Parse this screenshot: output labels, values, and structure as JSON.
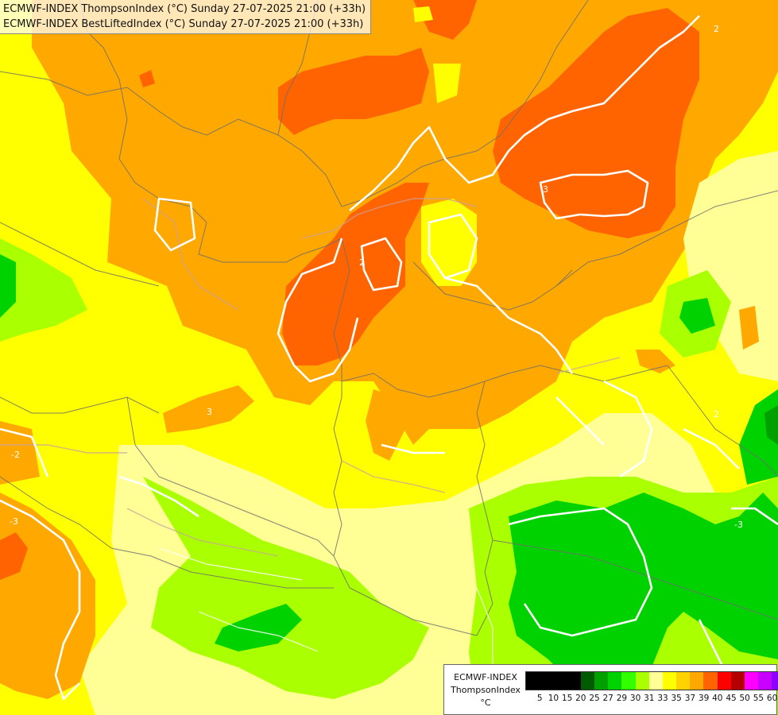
{
  "title": {
    "line1": "ECMWF-INDEX ThompsonIndex (°C) Sunday 27-07-2025 21:00 (+33h)",
    "line2": "ECMWF-INDEX BestLiftedIndex (°C) Sunday 27-07-2025 21:00 (+33h)"
  },
  "legend": {
    "model": "ECMWF-INDEX",
    "variable": "ThompsonIndex",
    "unit": "°C",
    "ticks": [
      "5",
      "10",
      "15",
      "20",
      "25",
      "27",
      "29",
      "30",
      "31",
      "33",
      "35",
      "37",
      "39",
      "40",
      "45",
      "50",
      "55",
      "60"
    ],
    "colors": [
      "#000000",
      "#000000",
      "#000000",
      "#000000",
      "#005a00",
      "#00a000",
      "#00d200",
      "#32ff00",
      "#aaff00",
      "#ffff96",
      "#ffff00",
      "#ffd200",
      "#ffa800",
      "#ff6400",
      "#ff0000",
      "#b40000",
      "#ff00ff",
      "#c800ff",
      "#8c00ff",
      "#5000ff",
      "#0000ff"
    ]
  },
  "contour_labels": [
    "2",
    "3",
    "2",
    "-2",
    "-3",
    "-3",
    "3",
    "2"
  ],
  "colors": {
    "orange": "#ffa800",
    "red_orange": "#ff6400",
    "yellow": "#ffff00",
    "pale_yellow": "#ffff96",
    "yellow_green": "#aaff00",
    "green": "#00d200",
    "dark_green": "#00a000",
    "contour": "#ffffff",
    "border": "#6e6e6e"
  }
}
